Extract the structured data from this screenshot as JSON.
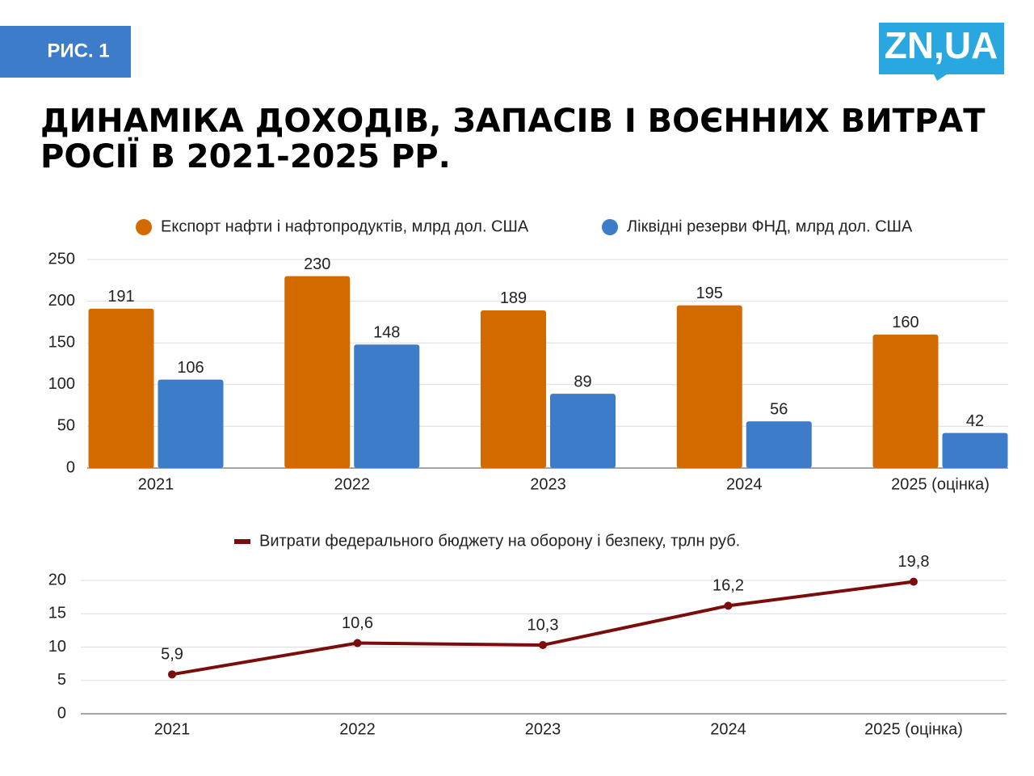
{
  "badge": "РИС. 1",
  "logo": "ZN,UA",
  "title": [
    "ДИНАМІКА ДОХОДІВ, ЗАПАСІВ І ВОЄННИХ ВИТРАТ",
    "РОСІЇ В 2021-2025 РР."
  ],
  "chart_data": [
    {
      "type": "bar",
      "categories": [
        "2021",
        "2022",
        "2023",
        "2024",
        "2025 (оцінка)"
      ],
      "series": [
        {
          "name": "Експорт нафти і нафтопродуктів, млрд дол. США",
          "color": "#d26a00",
          "values": [
            191,
            230,
            189,
            195,
            160
          ]
        },
        {
          "name": "Ліквідні резерви ФНД, млрд дол. США",
          "color": "#3d7cc9",
          "values": [
            106,
            148,
            89,
            56,
            42
          ]
        }
      ],
      "ylim": [
        0,
        250
      ],
      "yticks": [
        0,
        50,
        100,
        150,
        200,
        250
      ],
      "grid": true,
      "legend": "top"
    },
    {
      "type": "line",
      "categories": [
        "2021",
        "2022",
        "2023",
        "2024",
        "2025 (оцінка)"
      ],
      "series": [
        {
          "name": "Витрати федерального бюджету на оборону і безпеку, трлн руб.",
          "color": "#7a0c0c",
          "values": [
            5.9,
            10.6,
            10.3,
            16.2,
            19.8
          ],
          "value_labels": [
            "5,9",
            "10,6",
            "10,3",
            "16,2",
            "19,8"
          ]
        }
      ],
      "ylim": [
        0,
        20
      ],
      "yticks": [
        0,
        5,
        10,
        15,
        20
      ],
      "grid": true,
      "legend": "top"
    }
  ]
}
